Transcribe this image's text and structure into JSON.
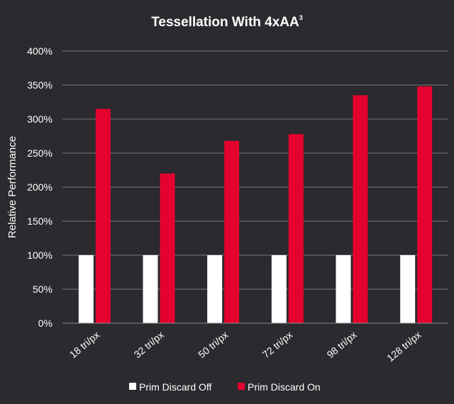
{
  "chart_data": {
    "type": "bar",
    "title": "Tessellation With 4xAA",
    "title_superscript": "3",
    "xlabel": "",
    "ylabel": "Relative Performance",
    "ylim": [
      0,
      400
    ],
    "yticks": [
      0,
      50,
      100,
      150,
      200,
      250,
      300,
      350,
      400
    ],
    "ytick_labels": [
      "0%",
      "50%",
      "100%",
      "150%",
      "200%",
      "250%",
      "300%",
      "350%",
      "400%"
    ],
    "grid": true,
    "legend_position": "bottom-center",
    "categories": [
      "18 tri/px",
      "32 tri/px",
      "50 tri/px",
      "72 tri/px",
      "98 tri/px",
      "128 tri/px"
    ],
    "series": [
      {
        "name": "Prim Discard Off",
        "color": "#ffffff",
        "values": [
          100,
          100,
          100,
          100,
          100,
          100
        ]
      },
      {
        "name": "Prim Discard On",
        "color": "#e4032e",
        "values": [
          315,
          220,
          268,
          278,
          335,
          348
        ]
      }
    ]
  }
}
